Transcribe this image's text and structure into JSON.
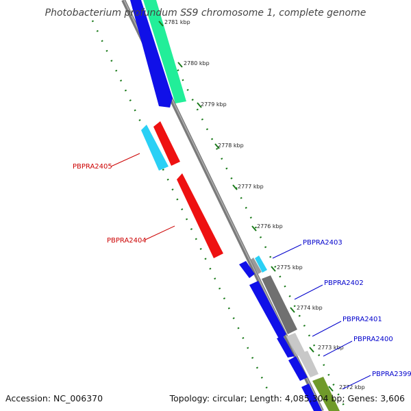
{
  "title": "Photobacterium profundum SS9 chromosome 1, complete genome",
  "footer": {
    "accession": "Accession: NC_006370",
    "summary": "Topology: circular; Length: 4,085,304 bp; Genes: 3,606"
  },
  "colors": {
    "backbone": "#808080",
    "dots": "#1a7a1a",
    "forward_label": "#0000cc",
    "reverse_label": "#cc0000",
    "blue": "#1010e8",
    "green": "#22ee99",
    "cyan": "#2ad0f5",
    "red": "#ee1111",
    "gray": "#707070",
    "lightgray": "#c8c8c8",
    "olive": "#6f9a2a"
  },
  "ticks": [
    {
      "label": "2781 kbp"
    },
    {
      "label": "2780 kbp"
    },
    {
      "label": "2779 kbp"
    },
    {
      "label": "2778 kbp"
    },
    {
      "label": "2777 kbp"
    },
    {
      "label": "2776 kbp"
    },
    {
      "label": "2775 kbp"
    },
    {
      "label": "2774 kbp"
    },
    {
      "label": "2773 kbp"
    },
    {
      "label": "2772 kbp"
    }
  ],
  "gene_labels": [
    {
      "text": "PBPRA2405",
      "strand": "reverse"
    },
    {
      "text": "PBPRA2404",
      "strand": "reverse"
    },
    {
      "text": "PBPRA2403",
      "strand": "forward"
    },
    {
      "text": "PBPRA2402",
      "strand": "forward"
    },
    {
      "text": "PBPRA2401",
      "strand": "forward"
    },
    {
      "text": "PBPRA2400",
      "strand": "forward"
    },
    {
      "text": "PBPRA2399",
      "strand": "forward"
    }
  ]
}
